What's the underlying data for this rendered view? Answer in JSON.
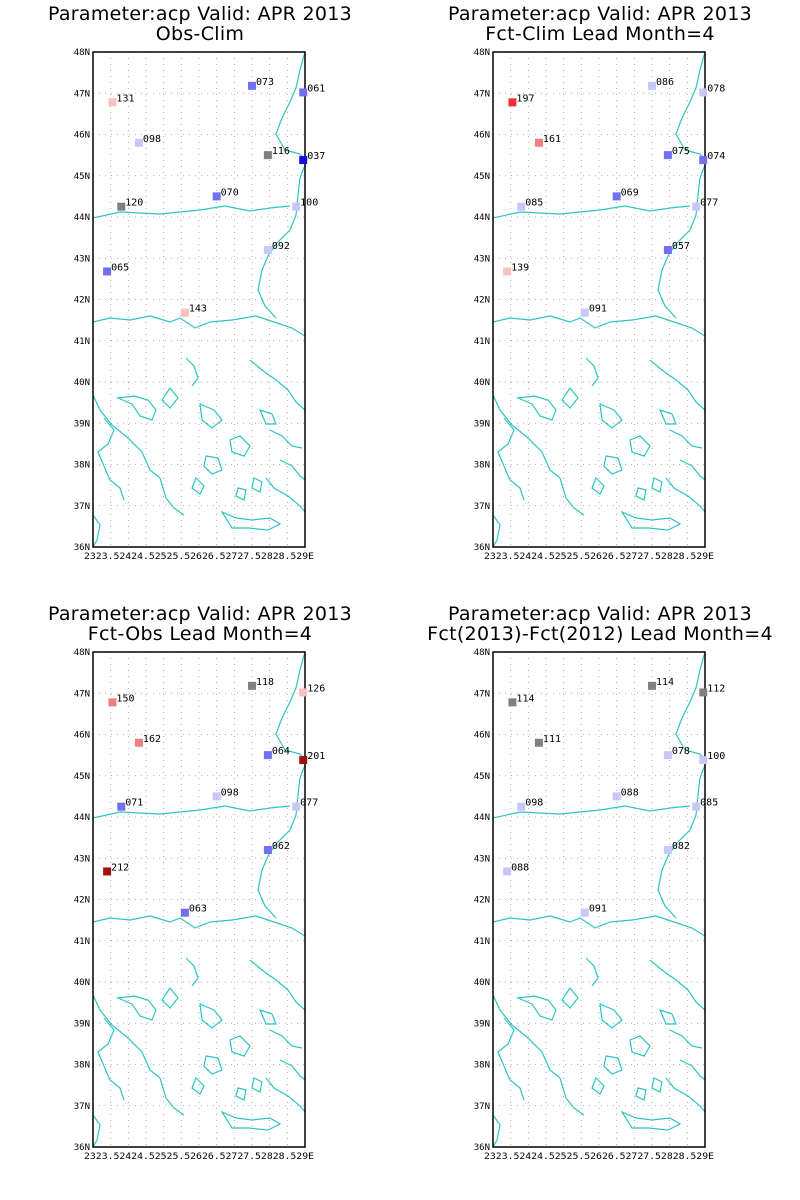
{
  "colors": {
    "coast": "#2ec4c4",
    "frame": "#000000",
    "grid": "#9a9a9a",
    "scale": {
      "dark_red": "#a01010",
      "red": "#f03030",
      "salmon": "#f08080",
      "pink": "#f8c0c0",
      "grey": "#808080",
      "lavender": "#c8c8f8",
      "light_blue": "#a0a0f4",
      "blue": "#7070f0",
      "deep_blue": "#1010d8"
    }
  },
  "axes": {
    "lat_labels": [
      "48N",
      "47N",
      "46N",
      "45N",
      "44N",
      "43N",
      "42N",
      "41N",
      "40N",
      "39N",
      "38N",
      "37N",
      "36N"
    ],
    "lon_label_text": "2323.52424.52525.52626.52727.52828.529E"
  },
  "panels": [
    {
      "title_line1": "Parameter:acp Valid: APR 2013",
      "title_line2": "Obs-Clim",
      "stations": [
        {
          "lon": 23.55,
          "lat": 46.78,
          "label": "131",
          "color": "pink"
        },
        {
          "lon": 24.3,
          "lat": 45.8,
          "label": "098",
          "color": "lavender"
        },
        {
          "lon": 23.8,
          "lat": 44.25,
          "label": "120",
          "color": "grey"
        },
        {
          "lon": 23.4,
          "lat": 42.68,
          "label": "065",
          "color": "blue"
        },
        {
          "lon": 25.6,
          "lat": 41.68,
          "label": "143",
          "color": "pink"
        },
        {
          "lon": 26.5,
          "lat": 44.5,
          "label": "070",
          "color": "blue"
        },
        {
          "lon": 27.5,
          "lat": 47.18,
          "label": "073",
          "color": "blue"
        },
        {
          "lon": 28.95,
          "lat": 47.02,
          "label": "061",
          "color": "blue"
        },
        {
          "lon": 27.95,
          "lat": 45.5,
          "label": "116",
          "color": "grey"
        },
        {
          "lon": 28.95,
          "lat": 45.38,
          "label": "037",
          "color": "deep_blue"
        },
        {
          "lon": 28.75,
          "lat": 44.25,
          "label": "100",
          "color": "lavender"
        },
        {
          "lon": 27.95,
          "lat": 43.2,
          "label": "092",
          "color": "lavender"
        }
      ]
    },
    {
      "title_line1": "Parameter:acp Valid: APR 2013",
      "title_line2": "Fct-Clim Lead Month=4",
      "stations": [
        {
          "lon": 23.55,
          "lat": 46.78,
          "label": "197",
          "color": "red"
        },
        {
          "lon": 24.3,
          "lat": 45.8,
          "label": "161",
          "color": "salmon"
        },
        {
          "lon": 23.8,
          "lat": 44.25,
          "label": "085",
          "color": "lavender"
        },
        {
          "lon": 23.4,
          "lat": 42.68,
          "label": "139",
          "color": "pink"
        },
        {
          "lon": 25.6,
          "lat": 41.68,
          "label": "091",
          "color": "lavender"
        },
        {
          "lon": 26.5,
          "lat": 44.5,
          "label": "069",
          "color": "blue"
        },
        {
          "lon": 27.5,
          "lat": 47.18,
          "label": "086",
          "color": "lavender"
        },
        {
          "lon": 28.95,
          "lat": 47.02,
          "label": "078",
          "color": "lavender"
        },
        {
          "lon": 27.95,
          "lat": 45.5,
          "label": "075",
          "color": "blue"
        },
        {
          "lon": 28.95,
          "lat": 45.38,
          "label": "074",
          "color": "blue"
        },
        {
          "lon": 28.75,
          "lat": 44.25,
          "label": "077",
          "color": "lavender"
        },
        {
          "lon": 27.95,
          "lat": 43.2,
          "label": "057",
          "color": "blue"
        }
      ]
    },
    {
      "title_line1": "Parameter:acp Valid: APR 2013",
      "title_line2": "Fct-Obs Lead Month=4",
      "stations": [
        {
          "lon": 23.55,
          "lat": 46.78,
          "label": "150",
          "color": "salmon"
        },
        {
          "lon": 24.3,
          "lat": 45.8,
          "label": "162",
          "color": "salmon"
        },
        {
          "lon": 23.8,
          "lat": 44.25,
          "label": "071",
          "color": "blue"
        },
        {
          "lon": 23.4,
          "lat": 42.68,
          "label": "212",
          "color": "dark_red"
        },
        {
          "lon": 25.6,
          "lat": 41.68,
          "label": "063",
          "color": "blue"
        },
        {
          "lon": 26.5,
          "lat": 44.5,
          "label": "098",
          "color": "lavender"
        },
        {
          "lon": 27.5,
          "lat": 47.18,
          "label": "118",
          "color": "grey"
        },
        {
          "lon": 28.95,
          "lat": 47.02,
          "label": "126",
          "color": "pink"
        },
        {
          "lon": 27.95,
          "lat": 45.5,
          "label": "064",
          "color": "blue"
        },
        {
          "lon": 28.95,
          "lat": 45.38,
          "label": "201",
          "color": "dark_red"
        },
        {
          "lon": 28.75,
          "lat": 44.25,
          "label": "077",
          "color": "lavender"
        },
        {
          "lon": 27.95,
          "lat": 43.2,
          "label": "062",
          "color": "blue"
        }
      ]
    },
    {
      "title_line1": "Parameter:acp Valid: APR 2013",
      "title_line2": "Fct(2013)-Fct(2012) Lead Month=4",
      "stations": [
        {
          "lon": 23.55,
          "lat": 46.78,
          "label": "114",
          "color": "grey"
        },
        {
          "lon": 24.3,
          "lat": 45.8,
          "label": "111",
          "color": "grey"
        },
        {
          "lon": 23.8,
          "lat": 44.25,
          "label": "098",
          "color": "lavender"
        },
        {
          "lon": 23.4,
          "lat": 42.68,
          "label": "088",
          "color": "lavender"
        },
        {
          "lon": 25.6,
          "lat": 41.68,
          "label": "091",
          "color": "lavender"
        },
        {
          "lon": 26.5,
          "lat": 44.5,
          "label": "088",
          "color": "lavender"
        },
        {
          "lon": 27.5,
          "lat": 47.18,
          "label": "114",
          "color": "grey"
        },
        {
          "lon": 28.95,
          "lat": 47.02,
          "label": "112",
          "color": "grey"
        },
        {
          "lon": 27.95,
          "lat": 45.5,
          "label": "078",
          "color": "lavender"
        },
        {
          "lon": 28.95,
          "lat": 45.38,
          "label": "100",
          "color": "lavender"
        },
        {
          "lon": 28.75,
          "lat": 44.25,
          "label": "085",
          "color": "lavender"
        },
        {
          "lon": 27.95,
          "lat": 43.2,
          "label": "082",
          "color": "lavender"
        }
      ]
    }
  ]
}
